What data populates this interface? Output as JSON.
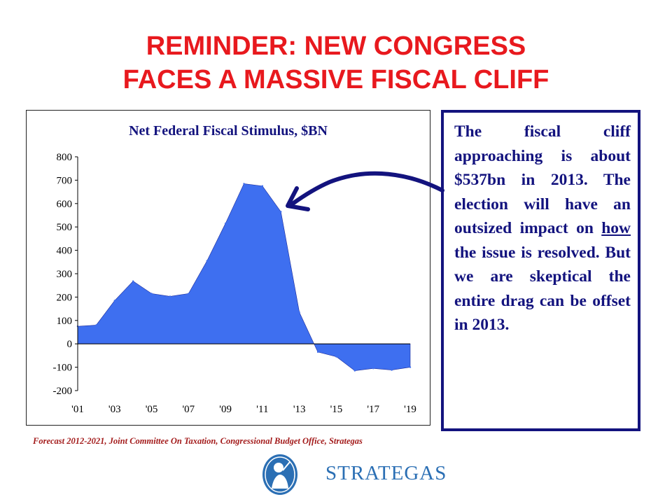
{
  "slide": {
    "title_line1": "REMINDER: NEW CONGRESS",
    "title_line2": "FACES A MASSIVE FISCAL CLIFF",
    "callout_before": "The fiscal cliff approaching is about $537bn in 2013. The election will have an outsized impact on ",
    "callout_underlined": "how",
    "callout_after": " the issue is resolved. But we are skeptical the entire drag can be offset in 2013.",
    "source": "Forecast 2012-2021, Joint Committee On Taxation, Congressional Budget Office, Strategas",
    "logo_text": "STRATEGAS",
    "colors": {
      "title": "#e8191e",
      "text": "#13137e",
      "fill": "#3e6ff0",
      "source": "#a31b1b",
      "logo": "#2b6fb4"
    }
  },
  "chart_data": {
    "type": "area",
    "title": "Net Federal Fiscal Stimulus, $BN",
    "xlabel": "",
    "ylabel": "",
    "x": [
      2001,
      2002,
      2003,
      2004,
      2005,
      2006,
      2007,
      2008,
      2009,
      2010,
      2011,
      2012,
      2013,
      2014,
      2015,
      2016,
      2017,
      2018,
      2019
    ],
    "values": [
      75,
      80,
      185,
      268,
      215,
      203,
      215,
      355,
      515,
      685,
      675,
      565,
      135,
      -35,
      -55,
      -115,
      -105,
      -112,
      -100
    ],
    "x_tick_labels": [
      "'01",
      "'03",
      "'05",
      "'07",
      "'09",
      "'11",
      "'13",
      "'15",
      "'17",
      "'19"
    ],
    "x_tick_years": [
      2001,
      2003,
      2005,
      2007,
      2009,
      2011,
      2013,
      2015,
      2017,
      2019
    ],
    "y_ticks": [
      800,
      700,
      600,
      500,
      400,
      300,
      200,
      100,
      0,
      -100,
      -200
    ],
    "ylim": [
      -200,
      800
    ],
    "grid": false,
    "legend": "none"
  }
}
